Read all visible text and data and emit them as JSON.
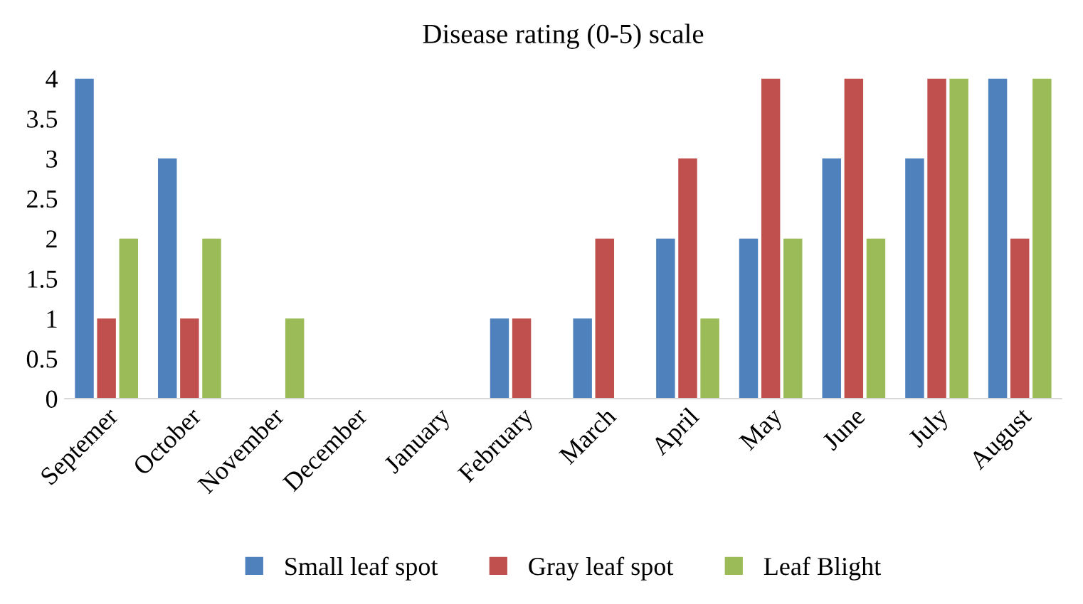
{
  "chart_data": {
    "type": "bar",
    "title": "Disease rating (0-5) scale",
    "categories": [
      "Septemer",
      "October",
      "November",
      "December",
      "January",
      "February",
      "March",
      "April",
      "May",
      "June",
      "July",
      "August"
    ],
    "series": [
      {
        "name": "Small leaf spot",
        "color": "#4f81bd",
        "values": [
          4,
          3,
          0,
          0,
          0,
          1,
          1,
          2,
          2,
          3,
          3,
          4
        ]
      },
      {
        "name": "Gray leaf spot",
        "color": "#c0504d",
        "values": [
          1,
          1,
          0,
          0,
          0,
          1,
          2,
          3,
          4,
          4,
          4,
          2
        ]
      },
      {
        "name": "Leaf Blight",
        "color": "#9bbb59",
        "values": [
          2,
          2,
          1,
          0,
          0,
          0,
          0,
          1,
          2,
          2,
          4,
          4
        ]
      }
    ],
    "ylim": [
      0,
      4
    ],
    "yticks": [
      0,
      0.5,
      1,
      1.5,
      2,
      2.5,
      3,
      3.5,
      4
    ],
    "grid": false,
    "legend": "bottom"
  }
}
